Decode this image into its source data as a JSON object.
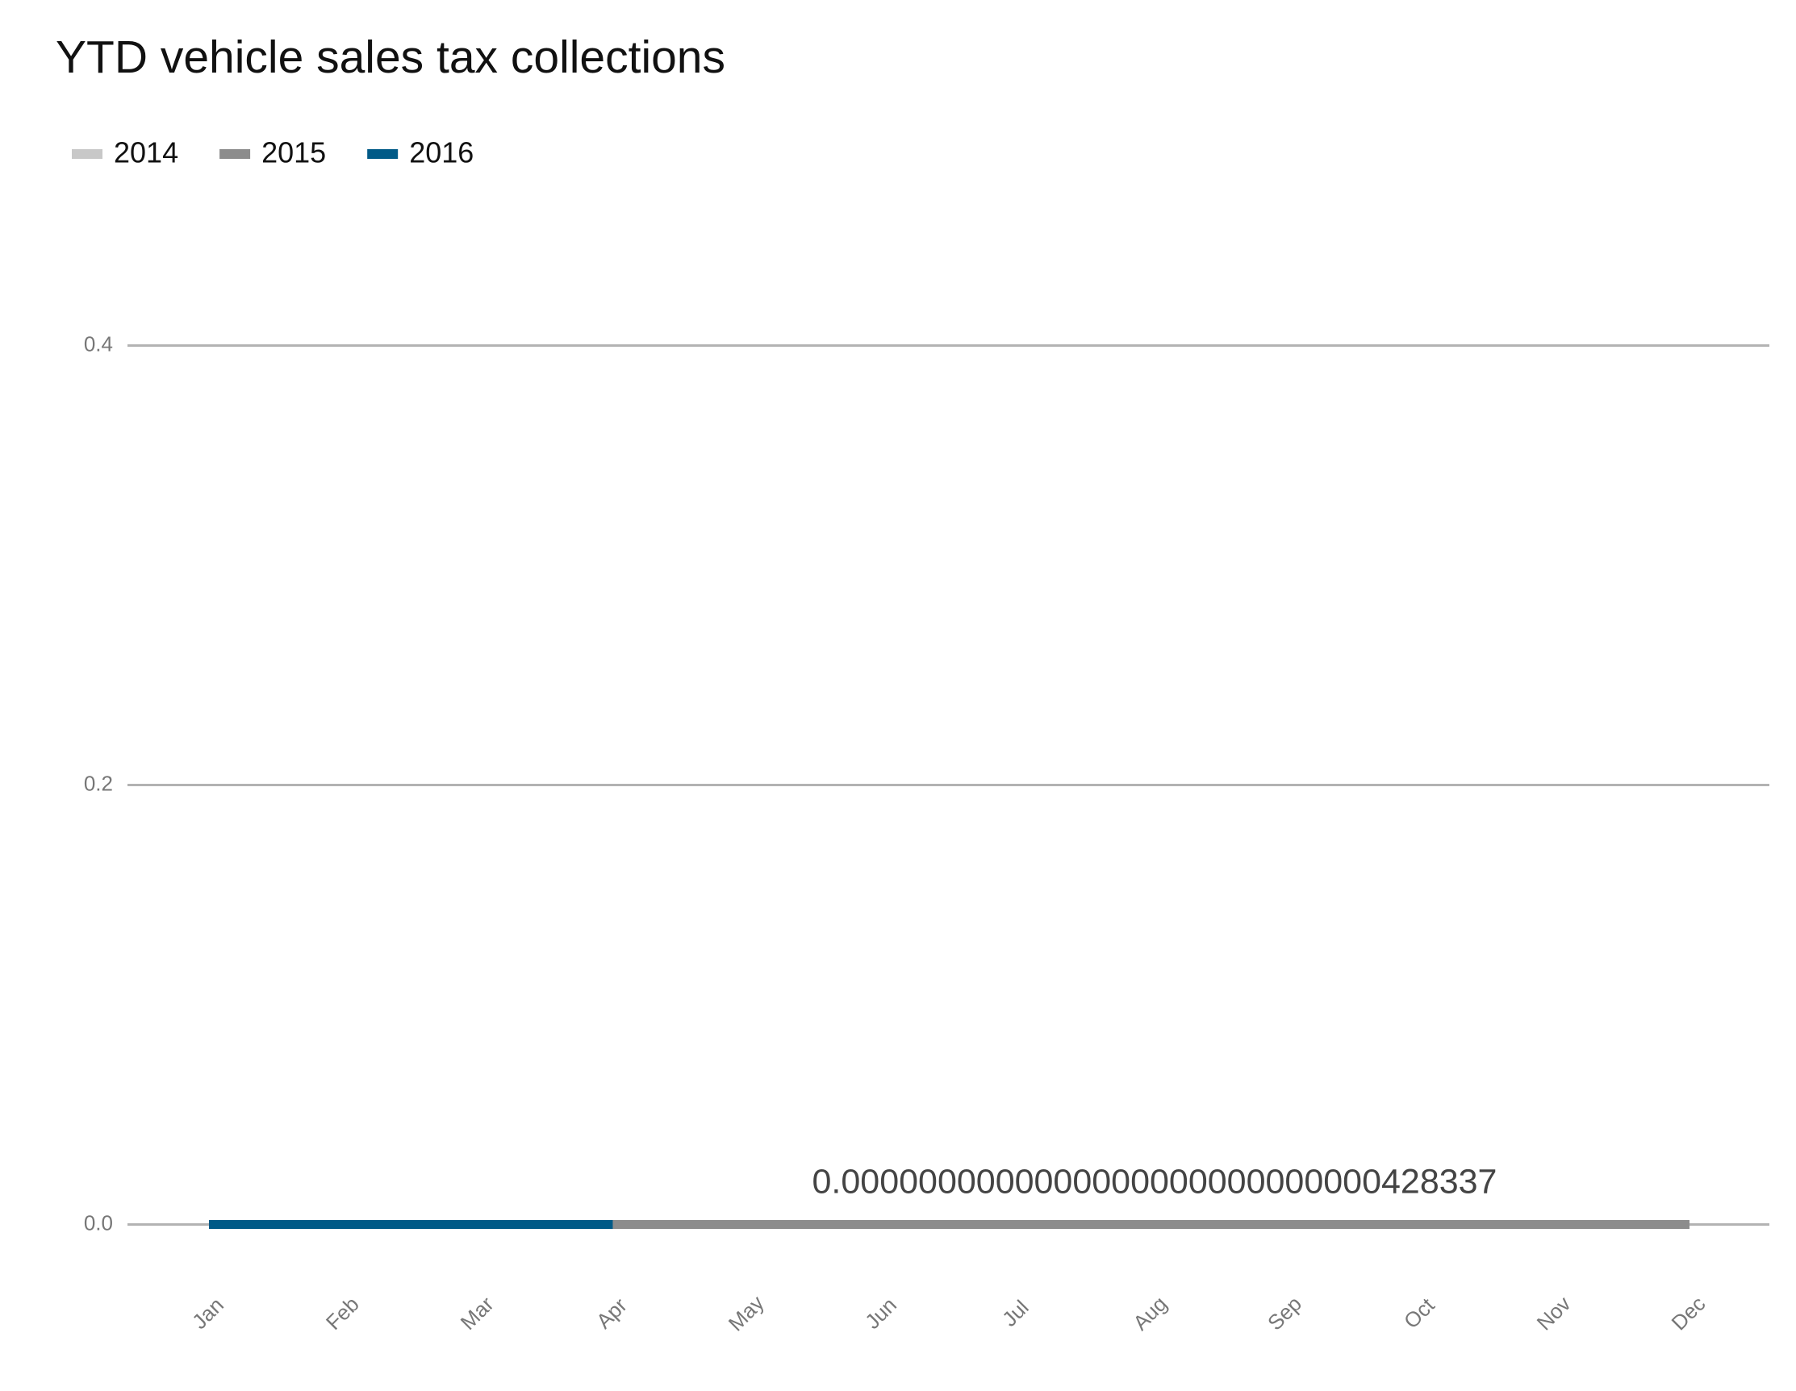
{
  "chart_data": {
    "type": "line",
    "title": "YTD vehicle sales tax collections",
    "annotation": "0.0000000000000000000000000000428337",
    "categories": [
      "Jan",
      "Feb",
      "Mar",
      "Apr",
      "May",
      "Jun",
      "Jul",
      "Aug",
      "Sep",
      "Oct",
      "Nov",
      "Dec"
    ],
    "series": [
      {
        "name": "2014",
        "color": "#c8c8c8",
        "values": [
          0,
          0,
          0,
          0,
          0,
          0,
          0,
          0,
          0,
          0,
          0,
          0
        ]
      },
      {
        "name": "2015",
        "color": "#8c8c8c",
        "values": [
          0,
          0,
          0,
          0,
          0,
          0,
          0,
          0,
          0,
          0,
          0,
          0
        ]
      },
      {
        "name": "2016",
        "color": "#005a87",
        "values": [
          0,
          0,
          0,
          0,
          null,
          null,
          null,
          null,
          null,
          null,
          null,
          null
        ]
      }
    ],
    "ylim": [
      -0.02,
      0.46
    ],
    "yticks": [
      {
        "value": 0,
        "label": "0.0"
      },
      {
        "value": 0.2,
        "label": "0.2"
      },
      {
        "value": 0.4,
        "label": "0.4"
      }
    ],
    "grid": true,
    "legend": "top"
  }
}
